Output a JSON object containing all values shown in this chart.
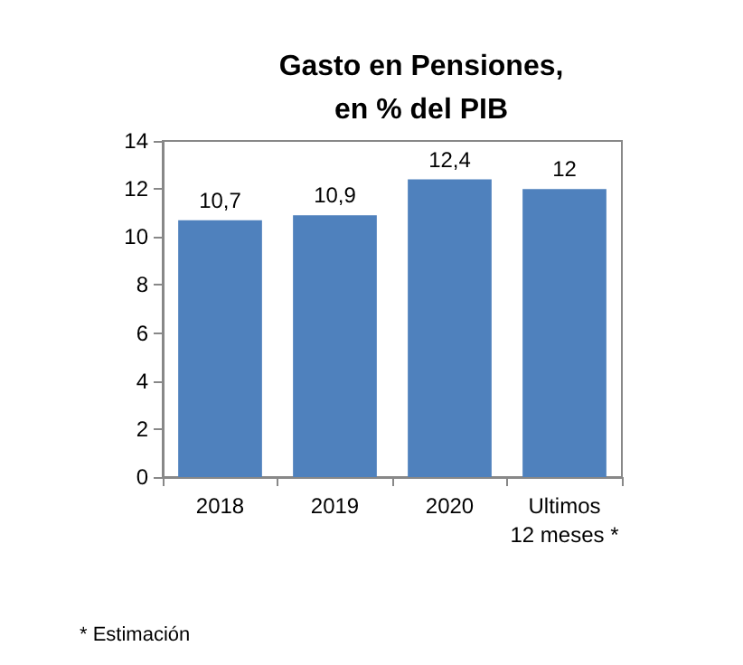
{
  "chart_data": {
    "type": "bar",
    "title": "Gasto en Pensiones,\nen % del PIB",
    "categories": [
      "2018",
      "2019",
      "2020",
      "Ultimos\n12 meses *"
    ],
    "values": [
      10.7,
      10.9,
      12.4,
      12
    ],
    "value_labels": [
      "10,7",
      "10,9",
      "12,4",
      "12"
    ],
    "color": "#4f81bd",
    "ylim": [
      0,
      14
    ],
    "yticks": [
      0,
      2,
      4,
      6,
      8,
      10,
      12,
      14
    ],
    "grid": false,
    "annotations": [
      "* Estimación"
    ]
  }
}
